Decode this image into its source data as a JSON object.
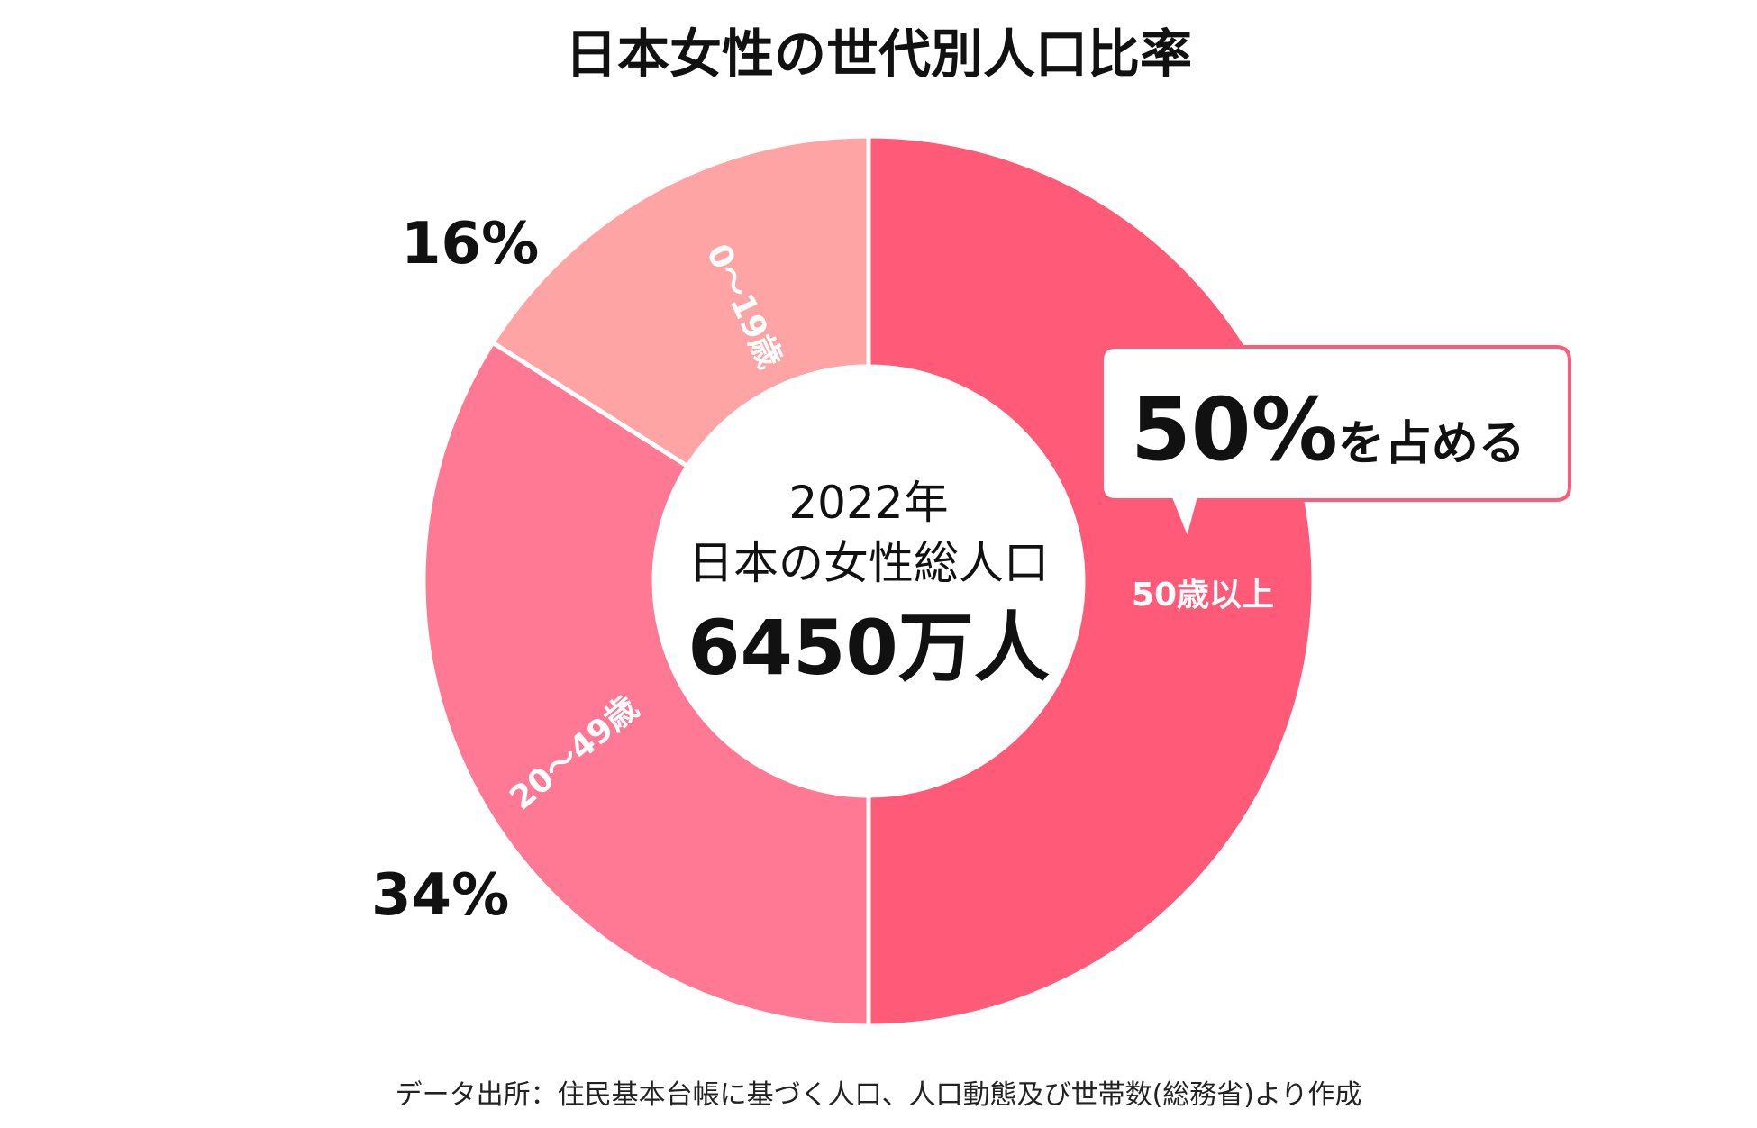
{
  "chart_data": {
    "type": "pie",
    "title": "日本女性の世代別人口比率",
    "categories": [
      "50歳以上",
      "20～49歳",
      "0～19歳"
    ],
    "values": [
      50,
      34,
      16
    ],
    "percent_labels": [
      "50%",
      "34%",
      "16%"
    ],
    "colors": [
      "#ff5a78",
      "#ff7894",
      "#ffa4a4"
    ],
    "center": {
      "year": "2022年",
      "label": "日本の女性総人口",
      "total": "6450万人"
    },
    "callout": {
      "value": "50%",
      "text": "を占める",
      "border_color": "#ff5a78"
    },
    "source": "データ出所：住民基本台帳に基づく人口、人口動態及び世帯数(総務省)より作成"
  }
}
